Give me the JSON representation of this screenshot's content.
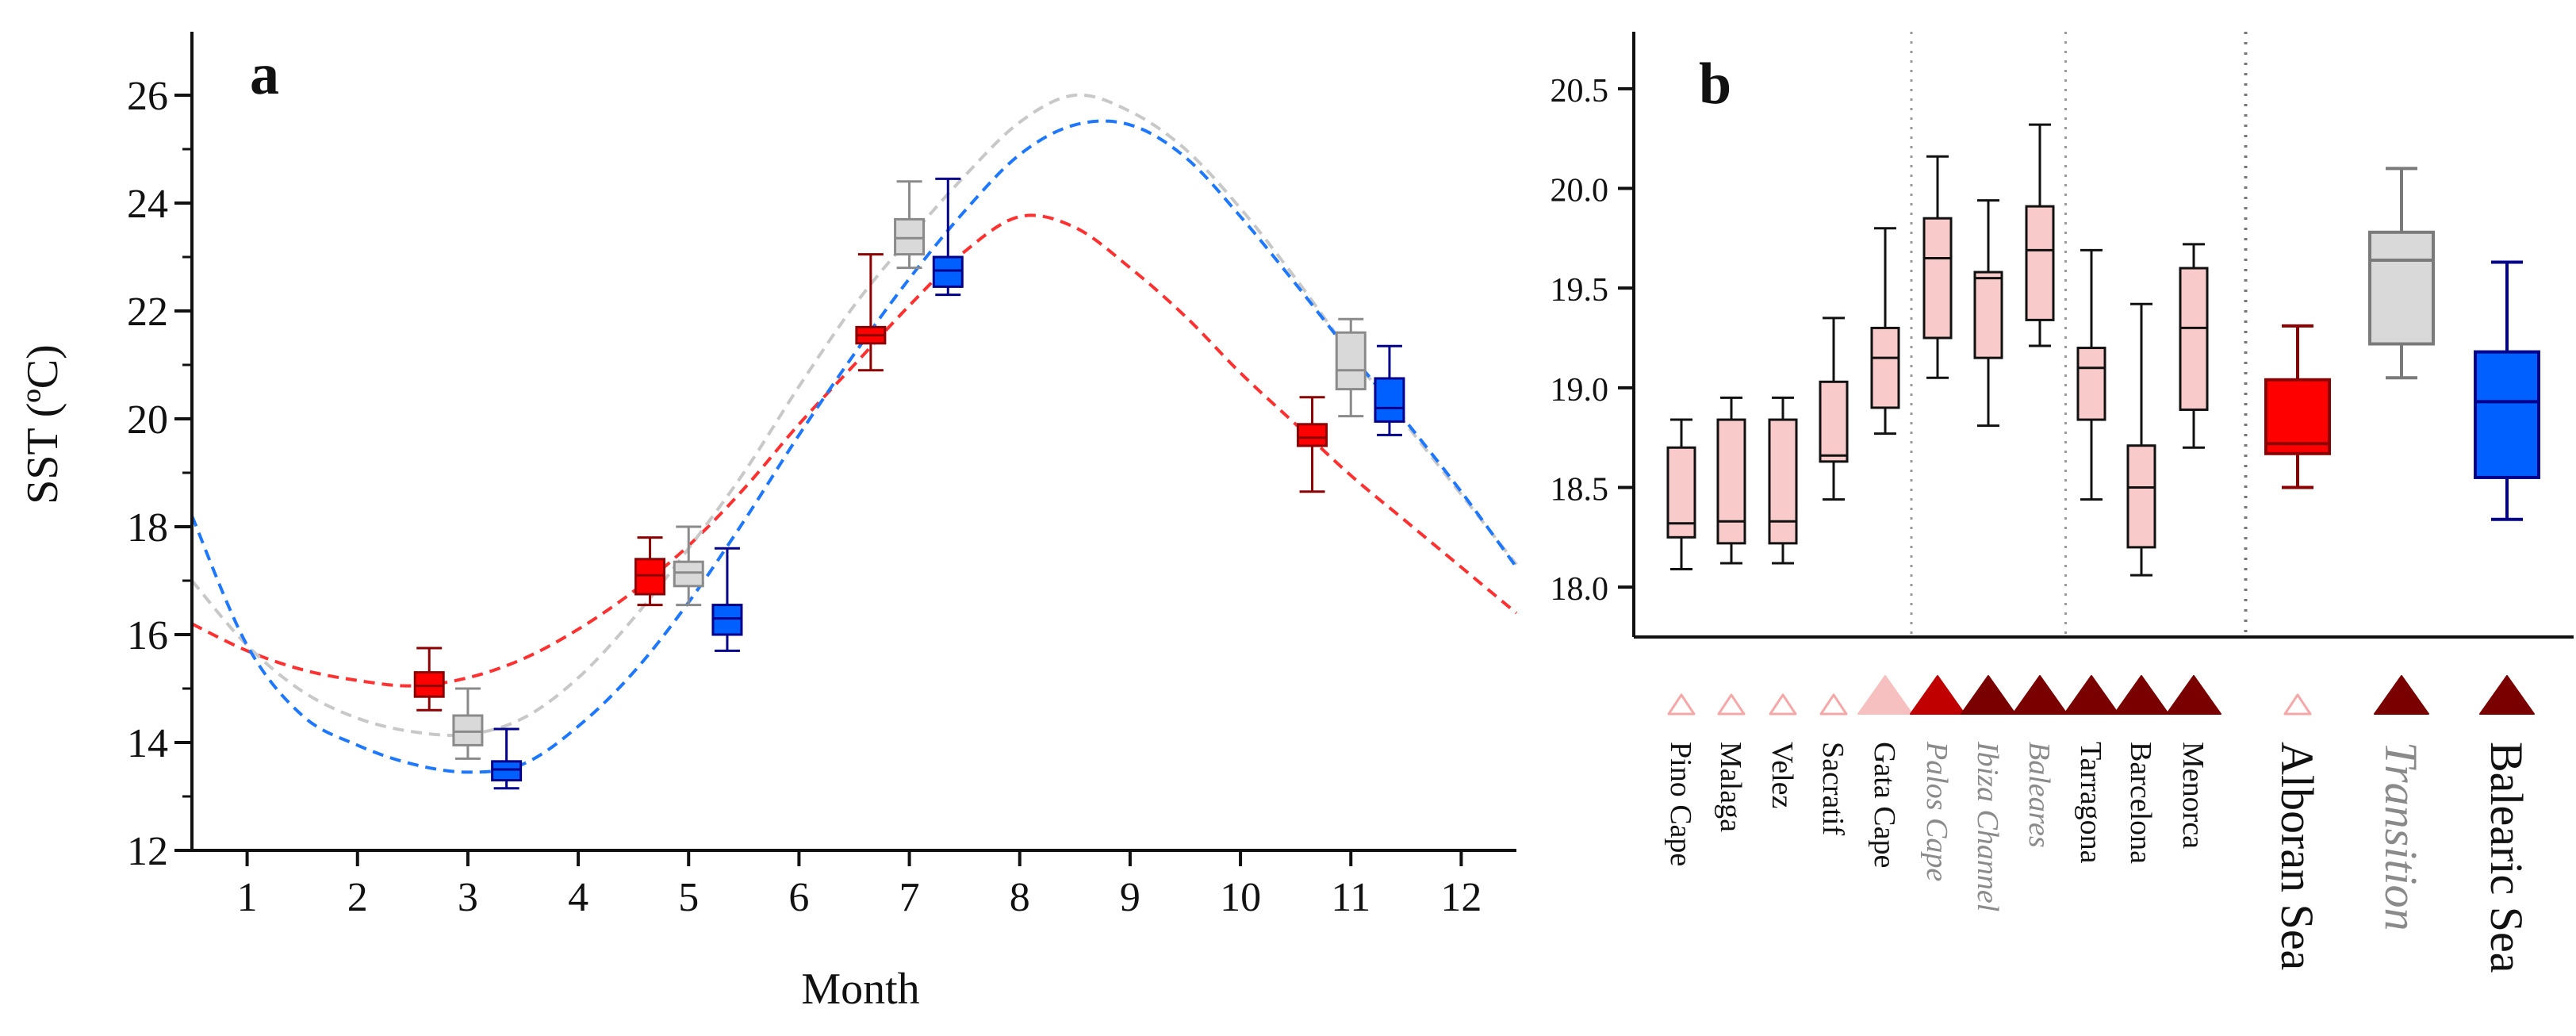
{
  "chart_data": [
    {
      "type": "box",
      "panel_label": "a",
      "title": "",
      "xlabel": "Month",
      "ylabel": "SST (ºC)",
      "xlim": [
        0.5,
        12.5
      ],
      "ylim": [
        12,
        27
      ],
      "xticks": [
        1,
        2,
        3,
        4,
        5,
        6,
        7,
        8,
        9,
        10,
        11,
        12
      ],
      "yticks": [
        12,
        14,
        16,
        18,
        20,
        22,
        24,
        26
      ],
      "grid": false,
      "series": [
        {
          "name": "Alboran Sea",
          "fill": "#ff0000",
          "edge": "#8b0000",
          "curve_color": "#ff3030",
          "boxes": [
            {
              "x": 2.65,
              "min": 14.6,
              "q1": 14.85,
              "median": 15.05,
              "q3": 15.3,
              "max": 15.75
            },
            {
              "x": 4.65,
              "min": 16.55,
              "q1": 16.75,
              "median": 17.1,
              "q3": 17.4,
              "max": 17.8
            },
            {
              "x": 6.65,
              "min": 20.9,
              "q1": 21.4,
              "median": 21.55,
              "q3": 21.7,
              "max": 23.05
            },
            {
              "x": 10.65,
              "min": 18.65,
              "q1": 19.5,
              "median": 19.65,
              "q3": 19.9,
              "max": 20.4
            }
          ],
          "curve": {
            "x": [
              0.5,
              1,
              1.5,
              2,
              2.5,
              3,
              3.5,
              4,
              4.5,
              5,
              5.5,
              6,
              6.5,
              7,
              7.5,
              8,
              8.5,
              9,
              9.5,
              10,
              10.5,
              11,
              11.5,
              12,
              12.5
            ],
            "y": [
              16.2,
              15.7,
              15.35,
              15.15,
              15.05,
              15.2,
              15.55,
              16.1,
              16.8,
              17.65,
              18.7,
              19.9,
              21.0,
              22.1,
              23.1,
              23.75,
              23.55,
              22.8,
              21.9,
              20.85,
              19.9,
              18.95,
              18.1,
              17.25,
              16.4
            ]
          }
        },
        {
          "name": "Transition",
          "fill": "#d9d9d9",
          "edge": "#8a8a8a",
          "curve_color": "#c8c8c8",
          "boxes": [
            {
              "x": 3.0,
              "min": 13.7,
              "q1": 13.95,
              "median": 14.2,
              "q3": 14.5,
              "max": 15.0
            },
            {
              "x": 5.0,
              "min": 16.55,
              "q1": 16.9,
              "median": 17.15,
              "q3": 17.35,
              "max": 18.0
            },
            {
              "x": 7.0,
              "min": 22.8,
              "q1": 23.05,
              "median": 23.35,
              "q3": 23.7,
              "max": 24.4
            },
            {
              "x": 11.0,
              "min": 20.05,
              "q1": 20.55,
              "median": 20.9,
              "q3": 21.6,
              "max": 21.85
            }
          ],
          "curve": {
            "x": [
              0.5,
              1,
              1.5,
              2,
              2.5,
              3,
              3.5,
              4,
              4.5,
              5,
              5.5,
              6,
              6.5,
              7,
              7.5,
              8,
              8.5,
              9,
              9.5,
              10,
              10.5,
              11,
              11.5,
              12,
              12.5
            ],
            "y": [
              17.0,
              15.8,
              14.95,
              14.45,
              14.2,
              14.15,
              14.45,
              15.2,
              16.3,
              17.6,
              19.0,
              20.6,
              22.1,
              23.35,
              24.5,
              25.5,
              26.0,
              25.7,
              25.0,
              23.9,
              22.6,
              21.2,
              19.9,
              18.6,
              17.3
            ]
          }
        },
        {
          "name": "Balearic Sea",
          "fill": "#0060ff",
          "edge": "#00008b",
          "curve_color": "#1e78ff",
          "boxes": [
            {
              "x": 3.35,
              "min": 13.15,
              "q1": 13.3,
              "median": 13.5,
              "q3": 13.65,
              "max": 14.25
            },
            {
              "x": 5.35,
              "min": 15.7,
              "q1": 16.0,
              "median": 16.3,
              "q3": 16.55,
              "max": 17.6
            },
            {
              "x": 7.35,
              "min": 22.3,
              "q1": 22.45,
              "median": 22.75,
              "q3": 23.0,
              "max": 24.45
            },
            {
              "x": 11.35,
              "min": 19.7,
              "q1": 19.95,
              "median": 20.2,
              "q3": 20.75,
              "max": 21.35
            }
          ],
          "curve": {
            "x": [
              0.5,
              1,
              1.5,
              2,
              2.5,
              3,
              3.5,
              4,
              4.5,
              5,
              5.5,
              6,
              6.5,
              7,
              7.5,
              8,
              8.5,
              9,
              9.5,
              10,
              10.5,
              11,
              11.5,
              12,
              12.5
            ],
            "y": [
              18.2,
              15.8,
              14.5,
              13.95,
              13.6,
              13.45,
              13.6,
              14.3,
              15.3,
              16.6,
              18.1,
              19.7,
              21.2,
              22.6,
              23.85,
              24.9,
              25.45,
              25.45,
              24.85,
              23.75,
              22.5,
              21.2,
              19.95,
              18.65,
              17.25
            ]
          }
        }
      ]
    },
    {
      "type": "box",
      "panel_label": "b",
      "title": "",
      "xlabel": "",
      "ylabel": "",
      "ylim": [
        17.75,
        20.75
      ],
      "yticks": [
        18.0,
        18.5,
        19.0,
        19.5,
        20.0,
        20.5
      ],
      "ytick_labels": [
        "18.0",
        "18.5",
        "19.0",
        "19.5",
        "20.0",
        "20.5"
      ],
      "grid": false,
      "separators_after": [
        "Gata Cape",
        "Baleares",
        "Menorca"
      ],
      "categories": [
        "Pino Cape",
        "Malaga",
        "Velez",
        "Sacratif",
        "Gata Cape",
        "Palos Cape",
        "Ibiza Channel",
        "Baleares",
        "Tarragona",
        "Barcelona",
        "Menorca",
        "Alboran Sea",
        "Transition",
        "Balearic Sea"
      ],
      "category_styles": [
        "normal",
        "normal",
        "normal",
        "normal",
        "normal",
        "italic-gray",
        "italic-gray",
        "italic-gray",
        "normal",
        "normal",
        "normal",
        "large",
        "large-italic-gray",
        "large"
      ],
      "markers": [
        "open-pink",
        "open-pink",
        "open-pink",
        "open-pink",
        "filled-pink",
        "filled-red",
        "filled-darkred",
        "filled-darkred",
        "filled-darkred",
        "filled-darkred",
        "filled-darkred",
        "open-pink",
        "filled-darkred",
        "filled-darkred"
      ],
      "boxes": [
        {
          "name": "Pino Cape",
          "min": 18.09,
          "q1": 18.25,
          "median": 18.32,
          "q3": 18.7,
          "max": 18.84,
          "fill": "#f9caca",
          "edge": "#111111"
        },
        {
          "name": "Malaga",
          "min": 18.12,
          "q1": 18.22,
          "median": 18.33,
          "q3": 18.84,
          "max": 18.95,
          "fill": "#f9caca",
          "edge": "#111111"
        },
        {
          "name": "Velez",
          "min": 18.12,
          "q1": 18.22,
          "median": 18.33,
          "q3": 18.84,
          "max": 18.95,
          "fill": "#f9caca",
          "edge": "#111111"
        },
        {
          "name": "Sacratif",
          "min": 18.44,
          "q1": 18.63,
          "median": 18.66,
          "q3": 19.03,
          "max": 19.35,
          "fill": "#f9caca",
          "edge": "#111111"
        },
        {
          "name": "Gata Cape",
          "min": 18.77,
          "q1": 18.9,
          "median": 19.15,
          "q3": 19.3,
          "max": 19.8,
          "fill": "#f9caca",
          "edge": "#111111"
        },
        {
          "name": "Palos Cape",
          "min": 19.05,
          "q1": 19.25,
          "median": 19.65,
          "q3": 19.85,
          "max": 20.16,
          "fill": "#f9caca",
          "edge": "#111111"
        },
        {
          "name": "Ibiza Channel",
          "min": 18.81,
          "q1": 19.15,
          "median": 19.55,
          "q3": 19.58,
          "max": 19.94,
          "fill": "#f9caca",
          "edge": "#111111"
        },
        {
          "name": "Baleares",
          "min": 19.21,
          "q1": 19.34,
          "median": 19.69,
          "q3": 19.91,
          "max": 20.32,
          "fill": "#f9caca",
          "edge": "#111111"
        },
        {
          "name": "Tarragona",
          "min": 18.44,
          "q1": 18.84,
          "median": 19.1,
          "q3": 19.2,
          "max": 19.69,
          "fill": "#f9caca",
          "edge": "#111111"
        },
        {
          "name": "Barcelona",
          "min": 18.06,
          "q1": 18.2,
          "median": 18.5,
          "q3": 18.71,
          "max": 19.42,
          "fill": "#f9caca",
          "edge": "#111111"
        },
        {
          "name": "Menorca",
          "min": 18.7,
          "q1": 18.89,
          "median": 19.3,
          "q3": 19.6,
          "max": 19.72,
          "fill": "#f9caca",
          "edge": "#111111"
        },
        {
          "name": "Alboran Sea",
          "min": 18.5,
          "q1": 18.67,
          "median": 18.72,
          "q3": 19.04,
          "max": 19.31,
          "fill": "#ff0000",
          "edge": "#8b0000"
        },
        {
          "name": "Transition",
          "min": 19.05,
          "q1": 19.22,
          "median": 19.64,
          "q3": 19.78,
          "max": 20.1,
          "fill": "#d9d9d9",
          "edge": "#7a7a7a"
        },
        {
          "name": "Balearic Sea",
          "min": 18.34,
          "q1": 18.55,
          "median": 18.93,
          "q3": 19.18,
          "max": 19.63,
          "fill": "#0060ff",
          "edge": "#00008b"
        }
      ]
    }
  ]
}
